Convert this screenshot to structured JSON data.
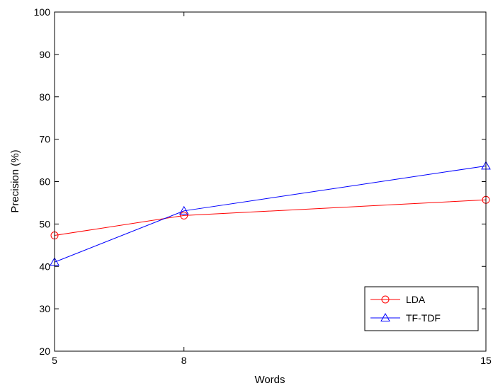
{
  "chart_data": {
    "type": "line",
    "title": "",
    "xlabel": "Words",
    "ylabel": "Precision (%)",
    "x": [
      5,
      8,
      15
    ],
    "xlim": [
      5,
      15
    ],
    "ylim": [
      20,
      100
    ],
    "xticks": [
      "5",
      "8",
      "15"
    ],
    "yticks": [
      "20",
      "30",
      "40",
      "50",
      "60",
      "70",
      "80",
      "90",
      "100"
    ],
    "grid": false,
    "legend_position": "bottom-right",
    "series": [
      {
        "name": "LDA",
        "color": "#ff0000",
        "marker": "circle",
        "values": [
          47.3,
          52.0,
          55.7
        ]
      },
      {
        "name": "TF-TDF",
        "color": "#0000ff",
        "marker": "triangle",
        "values": [
          41.0,
          53.1,
          63.7
        ]
      }
    ]
  }
}
